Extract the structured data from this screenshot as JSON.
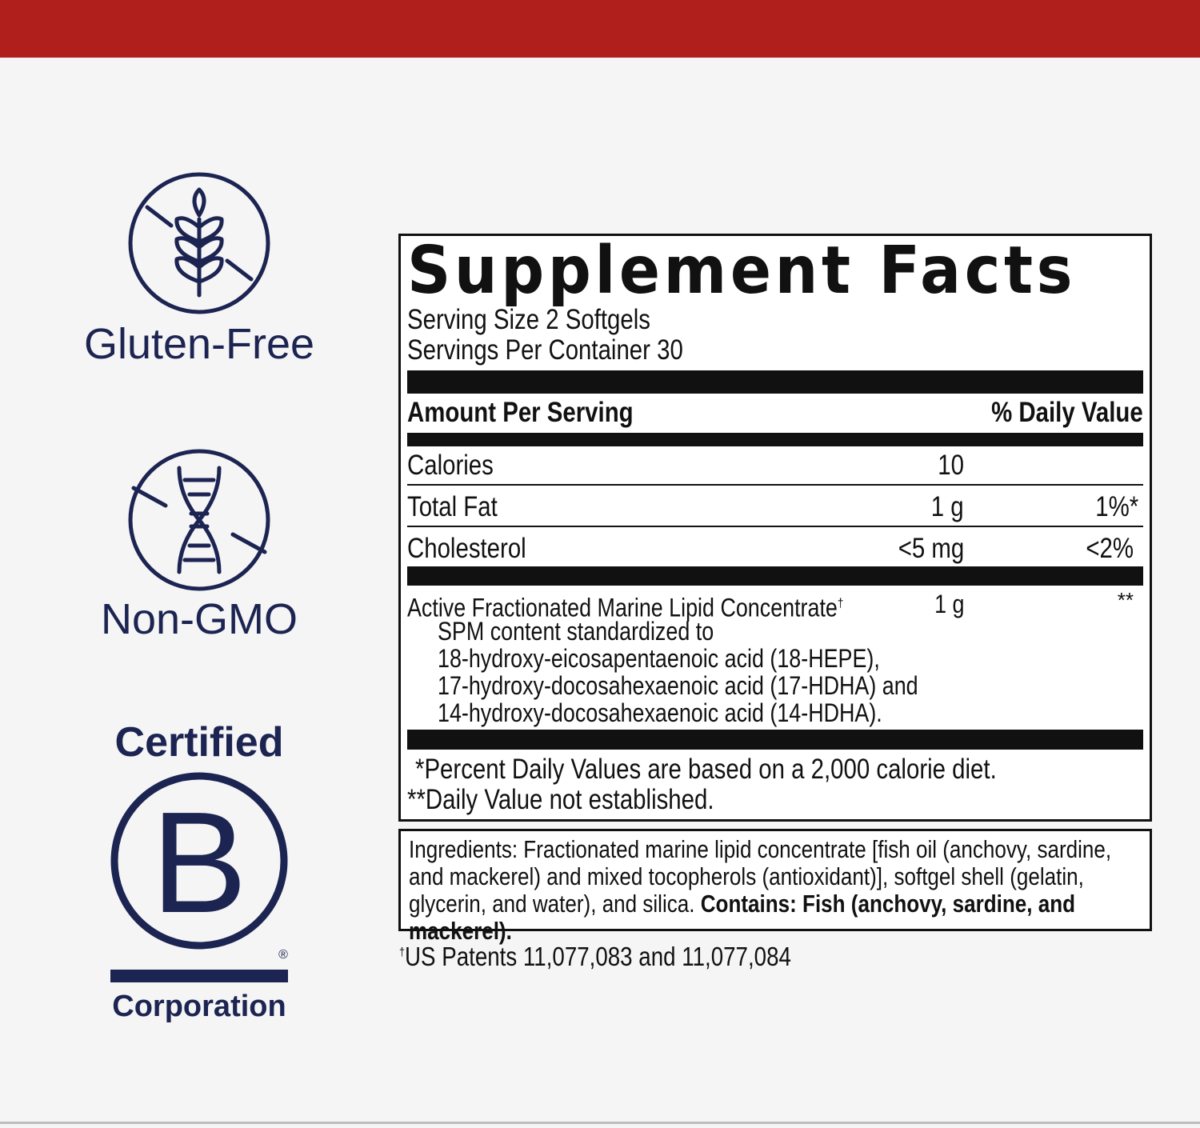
{
  "colors": {
    "top_bar": "#b01f1c",
    "badge_navy": "#1c2452",
    "label_black": "#111111"
  },
  "badges": [
    {
      "icon": "no-gluten-wheat-icon",
      "label": "Gluten-Free"
    },
    {
      "icon": "no-gmo-dna-icon",
      "label": "Non-GMO"
    },
    {
      "icon": "b-corp-logo",
      "top": "Certified",
      "bottom": "Corporation",
      "mark": "B",
      "reg": "®"
    }
  ],
  "facts": {
    "title": "Supplement Facts",
    "serving_size": "Serving Size 2 Softgels",
    "servings_per_container": "Servings Per Container 30",
    "header_amount": "Amount Per Serving",
    "header_dv": "% Daily Value",
    "rows": [
      {
        "name": "Calories",
        "amount": "10",
        "dv": ""
      },
      {
        "name": "Total Fat",
        "amount": "1 g",
        "dv": "1%*"
      },
      {
        "name": "Cholesterol",
        "amount": "<5 mg",
        "dv": "<2%"
      }
    ],
    "active": {
      "name": "Active Fractionated Marine Lipid Concentrate",
      "mark": "†",
      "amount": "1 g",
      "dv": "**",
      "sub": [
        "SPM content standardized to",
        "18-hydroxy-eicosapentaenoic acid (18-HEPE),",
        "17-hydroxy-docosahexaenoic acid (17-HDHA) and",
        "14-hydroxy-docosahexaenoic acid (14-HDHA)."
      ]
    },
    "footnotes": [
      "*Percent Daily Values are based on a 2,000 calorie diet.",
      "**Daily Value not established."
    ]
  },
  "ingredients": {
    "text": "Ingredients: Fractionated marine lipid concentrate [fish oil (anchovy, sardine, and mackerel) and mixed tocopherols (antioxidant)], softgel shell (gelatin, glycerin, and water), and silica. ",
    "contains": "Contains: Fish (anchovy, sardine, and mackerel)."
  },
  "patents": {
    "mark": "†",
    "text": "US Patents 11,077,083 and 11,077,084"
  }
}
